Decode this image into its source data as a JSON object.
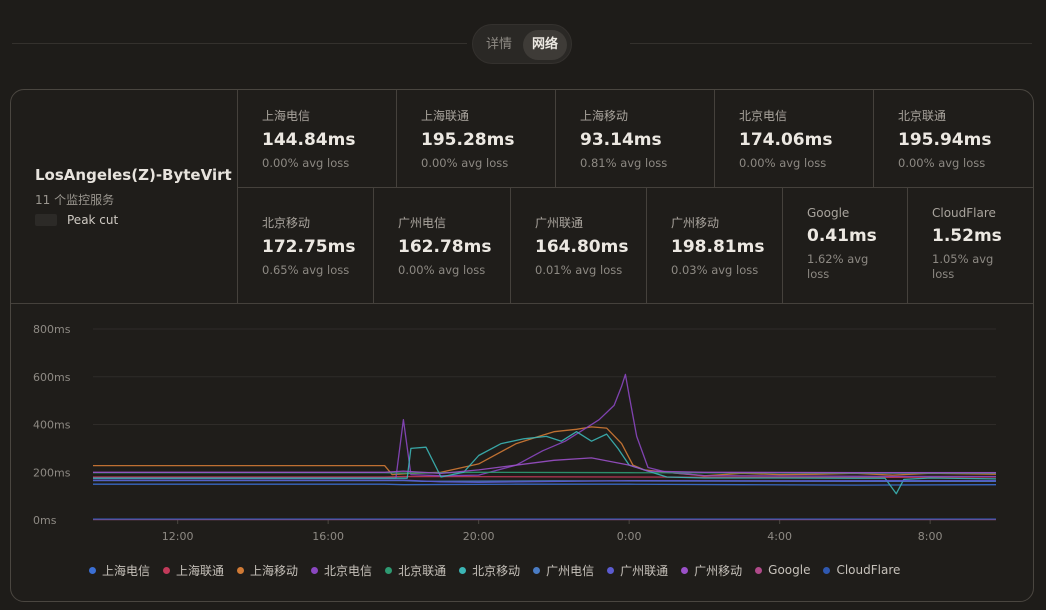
{
  "tabs": [
    {
      "label": "详情",
      "active": false
    },
    {
      "label": "网络",
      "active": true
    }
  ],
  "server": {
    "name": "LosAngeles(Z)-ByteVirt",
    "subtitle": "11 个监控服务",
    "peak_label": "Peak cut"
  },
  "monitors": [
    {
      "name": "上海电信",
      "latency": "144.84ms",
      "loss": "0.00% avg loss"
    },
    {
      "name": "上海联通",
      "latency": "195.28ms",
      "loss": "0.00% avg loss"
    },
    {
      "name": "上海移动",
      "latency": "93.14ms",
      "loss": "0.81% avg loss"
    },
    {
      "name": "北京电信",
      "latency": "174.06ms",
      "loss": "0.00% avg loss"
    },
    {
      "name": "北京联通",
      "latency": "195.94ms",
      "loss": "0.00% avg loss"
    },
    {
      "name": "北京移动",
      "latency": "172.75ms",
      "loss": "0.65% avg loss"
    },
    {
      "name": "广州电信",
      "latency": "162.78ms",
      "loss": "0.00% avg loss"
    },
    {
      "name": "广州联通",
      "latency": "164.80ms",
      "loss": "0.01% avg loss"
    },
    {
      "name": "广州移动",
      "latency": "198.81ms",
      "loss": "0.03% avg loss"
    },
    {
      "name": "Google",
      "latency": "0.41ms",
      "loss": "1.62% avg loss"
    },
    {
      "name": "CloudFlare",
      "latency": "1.52ms",
      "loss": "1.05% avg loss"
    }
  ],
  "chart_data": {
    "type": "line",
    "y_ticks": [
      "0ms",
      "200ms",
      "400ms",
      "600ms",
      "800ms"
    ],
    "ylim": [
      0,
      800
    ],
    "x_ticks": [
      "12:00",
      "16:00",
      "20:00",
      "0:00",
      "4:00",
      "8:00"
    ],
    "x_hours": [
      9.75,
      33.75
    ],
    "grid": true,
    "legend_position": "bottom",
    "series": [
      {
        "name": "上海电信",
        "color": "#3b6fd4",
        "values": [
          [
            9.75,
            150
          ],
          [
            17.5,
            150
          ],
          [
            18,
            148
          ],
          [
            21,
            150
          ],
          [
            24,
            150
          ],
          [
            27,
            148
          ],
          [
            30,
            146
          ],
          [
            33.75,
            148
          ]
        ]
      },
      {
        "name": "上海联通",
        "color": "#c23a5a",
        "values": [
          [
            9.75,
            180
          ],
          [
            17.5,
            180
          ],
          [
            18,
            182
          ],
          [
            24,
            180
          ],
          [
            30,
            178
          ],
          [
            33.75,
            180
          ]
        ]
      },
      {
        "name": "上海移动",
        "color": "#d07a35",
        "values": [
          [
            9.75,
            228
          ],
          [
            17.5,
            228
          ],
          [
            17.7,
            190
          ],
          [
            18.2,
            195
          ],
          [
            19,
            200
          ],
          [
            20,
            235
          ],
          [
            21,
            320
          ],
          [
            21.6,
            350
          ],
          [
            22,
            370
          ],
          [
            22.6,
            380
          ],
          [
            23,
            390
          ],
          [
            23.4,
            385
          ],
          [
            23.8,
            320
          ],
          [
            24.1,
            230
          ],
          [
            24.4,
            210
          ],
          [
            25,
            200
          ],
          [
            26,
            185
          ],
          [
            27,
            195
          ],
          [
            28,
            190
          ],
          [
            29,
            192
          ],
          [
            30,
            195
          ],
          [
            31,
            188
          ],
          [
            32,
            195
          ],
          [
            33.75,
            192
          ]
        ]
      },
      {
        "name": "北京电信",
        "color": "#8a47c0",
        "values": [
          [
            9.75,
            176
          ],
          [
            17.8,
            176
          ],
          [
            18,
            420
          ],
          [
            18.2,
            190
          ],
          [
            19,
            185
          ],
          [
            20,
            188
          ],
          [
            21,
            230
          ],
          [
            21.7,
            290
          ],
          [
            22.3,
            330
          ],
          [
            22.8,
            380
          ],
          [
            23.2,
            420
          ],
          [
            23.6,
            480
          ],
          [
            23.8,
            560
          ],
          [
            23.9,
            610
          ],
          [
            24,
            520
          ],
          [
            24.2,
            350
          ],
          [
            24.5,
            220
          ],
          [
            25,
            200
          ],
          [
            26,
            186
          ],
          [
            30,
            183
          ],
          [
            33.75,
            182
          ]
        ]
      },
      {
        "name": "北京联通",
        "color": "#2e9a72",
        "values": [
          [
            9.75,
            198
          ],
          [
            17.5,
            198
          ],
          [
            18,
            196
          ],
          [
            20,
            200
          ],
          [
            24,
            198
          ],
          [
            30,
            196
          ],
          [
            33.75,
            196
          ]
        ]
      },
      {
        "name": "北京移动",
        "color": "#3bb5b5",
        "values": [
          [
            9.75,
            175
          ],
          [
            18.1,
            175
          ],
          [
            18.2,
            300
          ],
          [
            18.6,
            305
          ],
          [
            19,
            180
          ],
          [
            19.6,
            200
          ],
          [
            20,
            270
          ],
          [
            20.6,
            320
          ],
          [
            21.2,
            340
          ],
          [
            21.8,
            350
          ],
          [
            22.2,
            330
          ],
          [
            22.6,
            370
          ],
          [
            23,
            330
          ],
          [
            23.4,
            360
          ],
          [
            23.7,
            300
          ],
          [
            24,
            230
          ],
          [
            24.6,
            200
          ],
          [
            25,
            180
          ],
          [
            26,
            176
          ],
          [
            28,
            176
          ],
          [
            30,
            175
          ],
          [
            30.8,
            175
          ],
          [
            31.1,
            110
          ],
          [
            31.3,
            170
          ],
          [
            32,
            176
          ],
          [
            33.75,
            172
          ]
        ]
      },
      {
        "name": "广州电信",
        "color": "#4a7cc4",
        "values": [
          [
            9.75,
            165
          ],
          [
            18,
            165
          ],
          [
            18.5,
            162
          ],
          [
            22,
            164
          ],
          [
            26,
            163
          ],
          [
            30,
            162
          ],
          [
            33.75,
            162
          ]
        ]
      },
      {
        "name": "广州联通",
        "color": "#5b5bd0",
        "values": [
          [
            9.75,
            167
          ],
          [
            18,
            167
          ],
          [
            19,
            160
          ],
          [
            20,
            158
          ],
          [
            24,
            165
          ],
          [
            28,
            164
          ],
          [
            33.75,
            165
          ]
        ]
      },
      {
        "name": "广州移动",
        "color": "#9a50c8",
        "values": [
          [
            9.75,
            200
          ],
          [
            17.5,
            200
          ],
          [
            18,
            205
          ],
          [
            19,
            195
          ],
          [
            20,
            210
          ],
          [
            22,
            250
          ],
          [
            23,
            260
          ],
          [
            24,
            230
          ],
          [
            24.5,
            205
          ],
          [
            26,
            200
          ],
          [
            30,
            198
          ],
          [
            33.75,
            198
          ]
        ]
      },
      {
        "name": "Google",
        "color": "#b04a8a",
        "values": [
          [
            9.75,
            2
          ],
          [
            33.75,
            2
          ]
        ]
      },
      {
        "name": "CloudFlare",
        "color": "#2f58b0",
        "values": [
          [
            9.75,
            4
          ],
          [
            33.75,
            4
          ]
        ]
      }
    ]
  }
}
